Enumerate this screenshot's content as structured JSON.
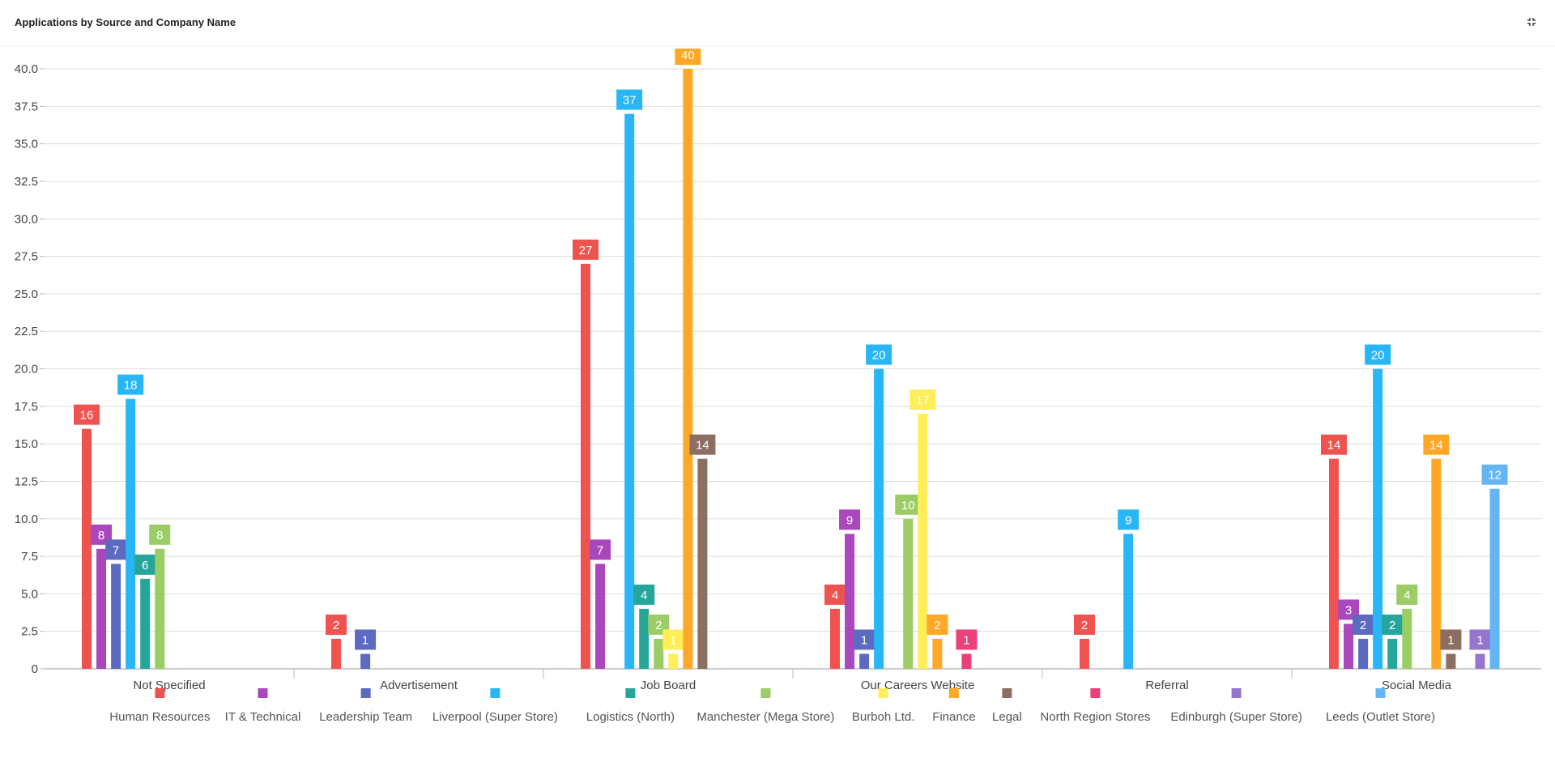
{
  "header": {
    "title": "Applications by Source and Company Name",
    "collapse_icon": "collapse-icon"
  },
  "chart_data": {
    "type": "bar",
    "title": "Applications by Source and Company Name",
    "xlabel": "",
    "ylabel": "",
    "ylim": [
      0,
      40
    ],
    "ytick_step": 2.5,
    "grid": true,
    "legend_position": "bottom",
    "categories": [
      "Not Specified",
      "Advertisement",
      "Job Board",
      "Our Careers Website",
      "Referral",
      "Social Media"
    ],
    "series": [
      {
        "name": "Human Resources",
        "color": "#ef5350",
        "values": [
          16,
          2,
          27,
          4,
          2,
          14
        ]
      },
      {
        "name": "IT & Technical",
        "color": "#ab47bc",
        "values": [
          8,
          null,
          7,
          9,
          null,
          3
        ]
      },
      {
        "name": "Leadership Team",
        "color": "#5c6bc0",
        "values": [
          7,
          1,
          null,
          1,
          null,
          2
        ]
      },
      {
        "name": "Liverpool (Super Store)",
        "color": "#29b6f6",
        "values": [
          18,
          null,
          37,
          20,
          9,
          20
        ]
      },
      {
        "name": "Logistics (North)",
        "color": "#26a69a",
        "values": [
          6,
          null,
          4,
          null,
          null,
          2
        ]
      },
      {
        "name": "Manchester (Mega Store)",
        "color": "#9ccc65",
        "values": [
          8,
          null,
          2,
          10,
          null,
          4
        ]
      },
      {
        "name": "Burboh Ltd.",
        "color": "#ffee58",
        "values": [
          null,
          null,
          1,
          17,
          null,
          null
        ]
      },
      {
        "name": "Finance",
        "color": "#ffa726",
        "values": [
          null,
          null,
          40,
          2,
          null,
          14
        ]
      },
      {
        "name": "Legal",
        "color": "#8d6e63",
        "values": [
          null,
          null,
          14,
          null,
          null,
          1
        ]
      },
      {
        "name": "North Region Stores",
        "color": "#ec407a",
        "values": [
          null,
          null,
          null,
          1,
          null,
          null
        ]
      },
      {
        "name": "Edinburgh (Super Store)",
        "color": "#9575cd",
        "values": [
          null,
          null,
          null,
          null,
          null,
          1
        ]
      },
      {
        "name": "Leeds (Outlet Store)",
        "color": "#64b5f6",
        "values": [
          null,
          null,
          null,
          null,
          null,
          12
        ]
      }
    ]
  }
}
